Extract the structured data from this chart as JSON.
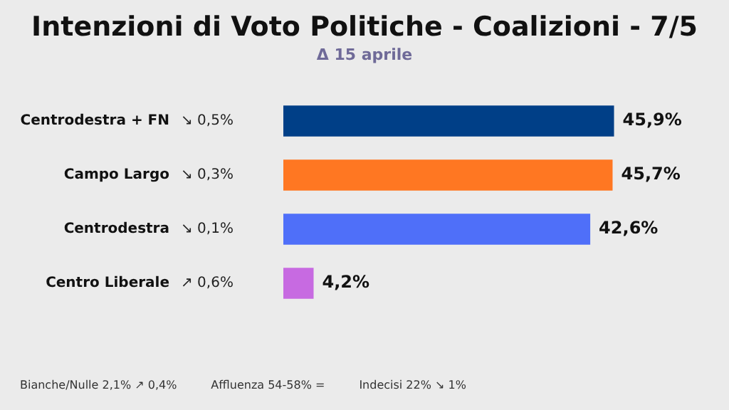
{
  "chart_data": {
    "type": "bar",
    "orientation": "horizontal",
    "title": "Intenzioni di Voto Politiche - Coalizioni - 7/5",
    "subtitle": "Δ 15 aprile",
    "categories": [
      "Centrodestra + FN",
      "Campo Largo",
      "Centrodestra",
      "Centro Liberale"
    ],
    "values": [
      45.9,
      45.7,
      42.6,
      4.2
    ],
    "colors": [
      "#003f87",
      "#ff7722",
      "#4f6ff9",
      "#c76ae1"
    ],
    "value_labels": [
      "45,9%",
      "45,7%",
      "42,6%",
      "4,2%"
    ],
    "annotations": [
      "↘ 0,5%",
      "↘ 0,3%",
      "↘ 0,1%",
      "↗ 0,6%",
      "Bianche/Nulle 2,1%  ↗ 0,4%",
      "Affluenza 54-58%  =",
      "Indecisi 22%  ↘ 1%"
    ],
    "grid": false,
    "legend": false
  }
}
